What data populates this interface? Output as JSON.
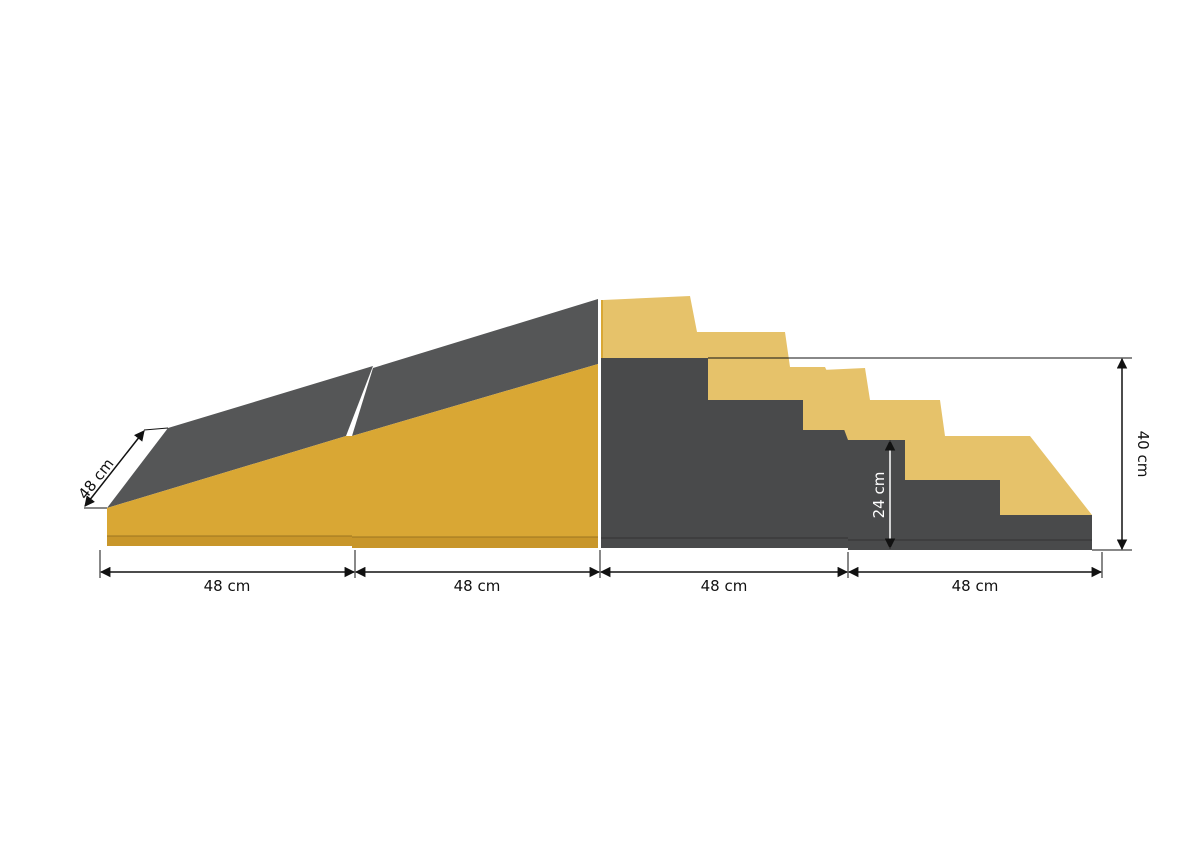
{
  "colors": {
    "yellow": "#D9A734",
    "yellow_light": "#E8C56E",
    "gray": "#4A4B4C",
    "gray_top": "#5A5B5C",
    "line": "#111111"
  },
  "dimensions": {
    "depth_label": "48 cm",
    "width_labels": [
      "48 cm",
      "48 cm",
      "48 cm",
      "48 cm"
    ],
    "height_total_label": "40 cm",
    "height_step_label": "24 cm"
  }
}
